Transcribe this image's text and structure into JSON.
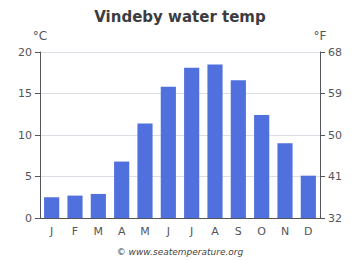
{
  "chart_data": {
    "type": "bar",
    "title": "Vindeby water temp",
    "categories": [
      "J",
      "F",
      "M",
      "A",
      "M",
      "J",
      "J",
      "A",
      "S",
      "O",
      "N",
      "D"
    ],
    "values": [
      2.5,
      2.7,
      2.9,
      6.8,
      11.4,
      15.8,
      18.1,
      18.5,
      16.6,
      12.4,
      9.0,
      5.1
    ],
    "ylabel": "°C",
    "ylim": [
      0,
      20
    ],
    "yticks": [
      0,
      5,
      10,
      15,
      20
    ],
    "y2label": "°F",
    "y2lim": [
      32,
      68
    ],
    "y2ticks": [
      32,
      41,
      50,
      59,
      68
    ],
    "grid": true,
    "annotation": "© www.seatemperature.org"
  }
}
